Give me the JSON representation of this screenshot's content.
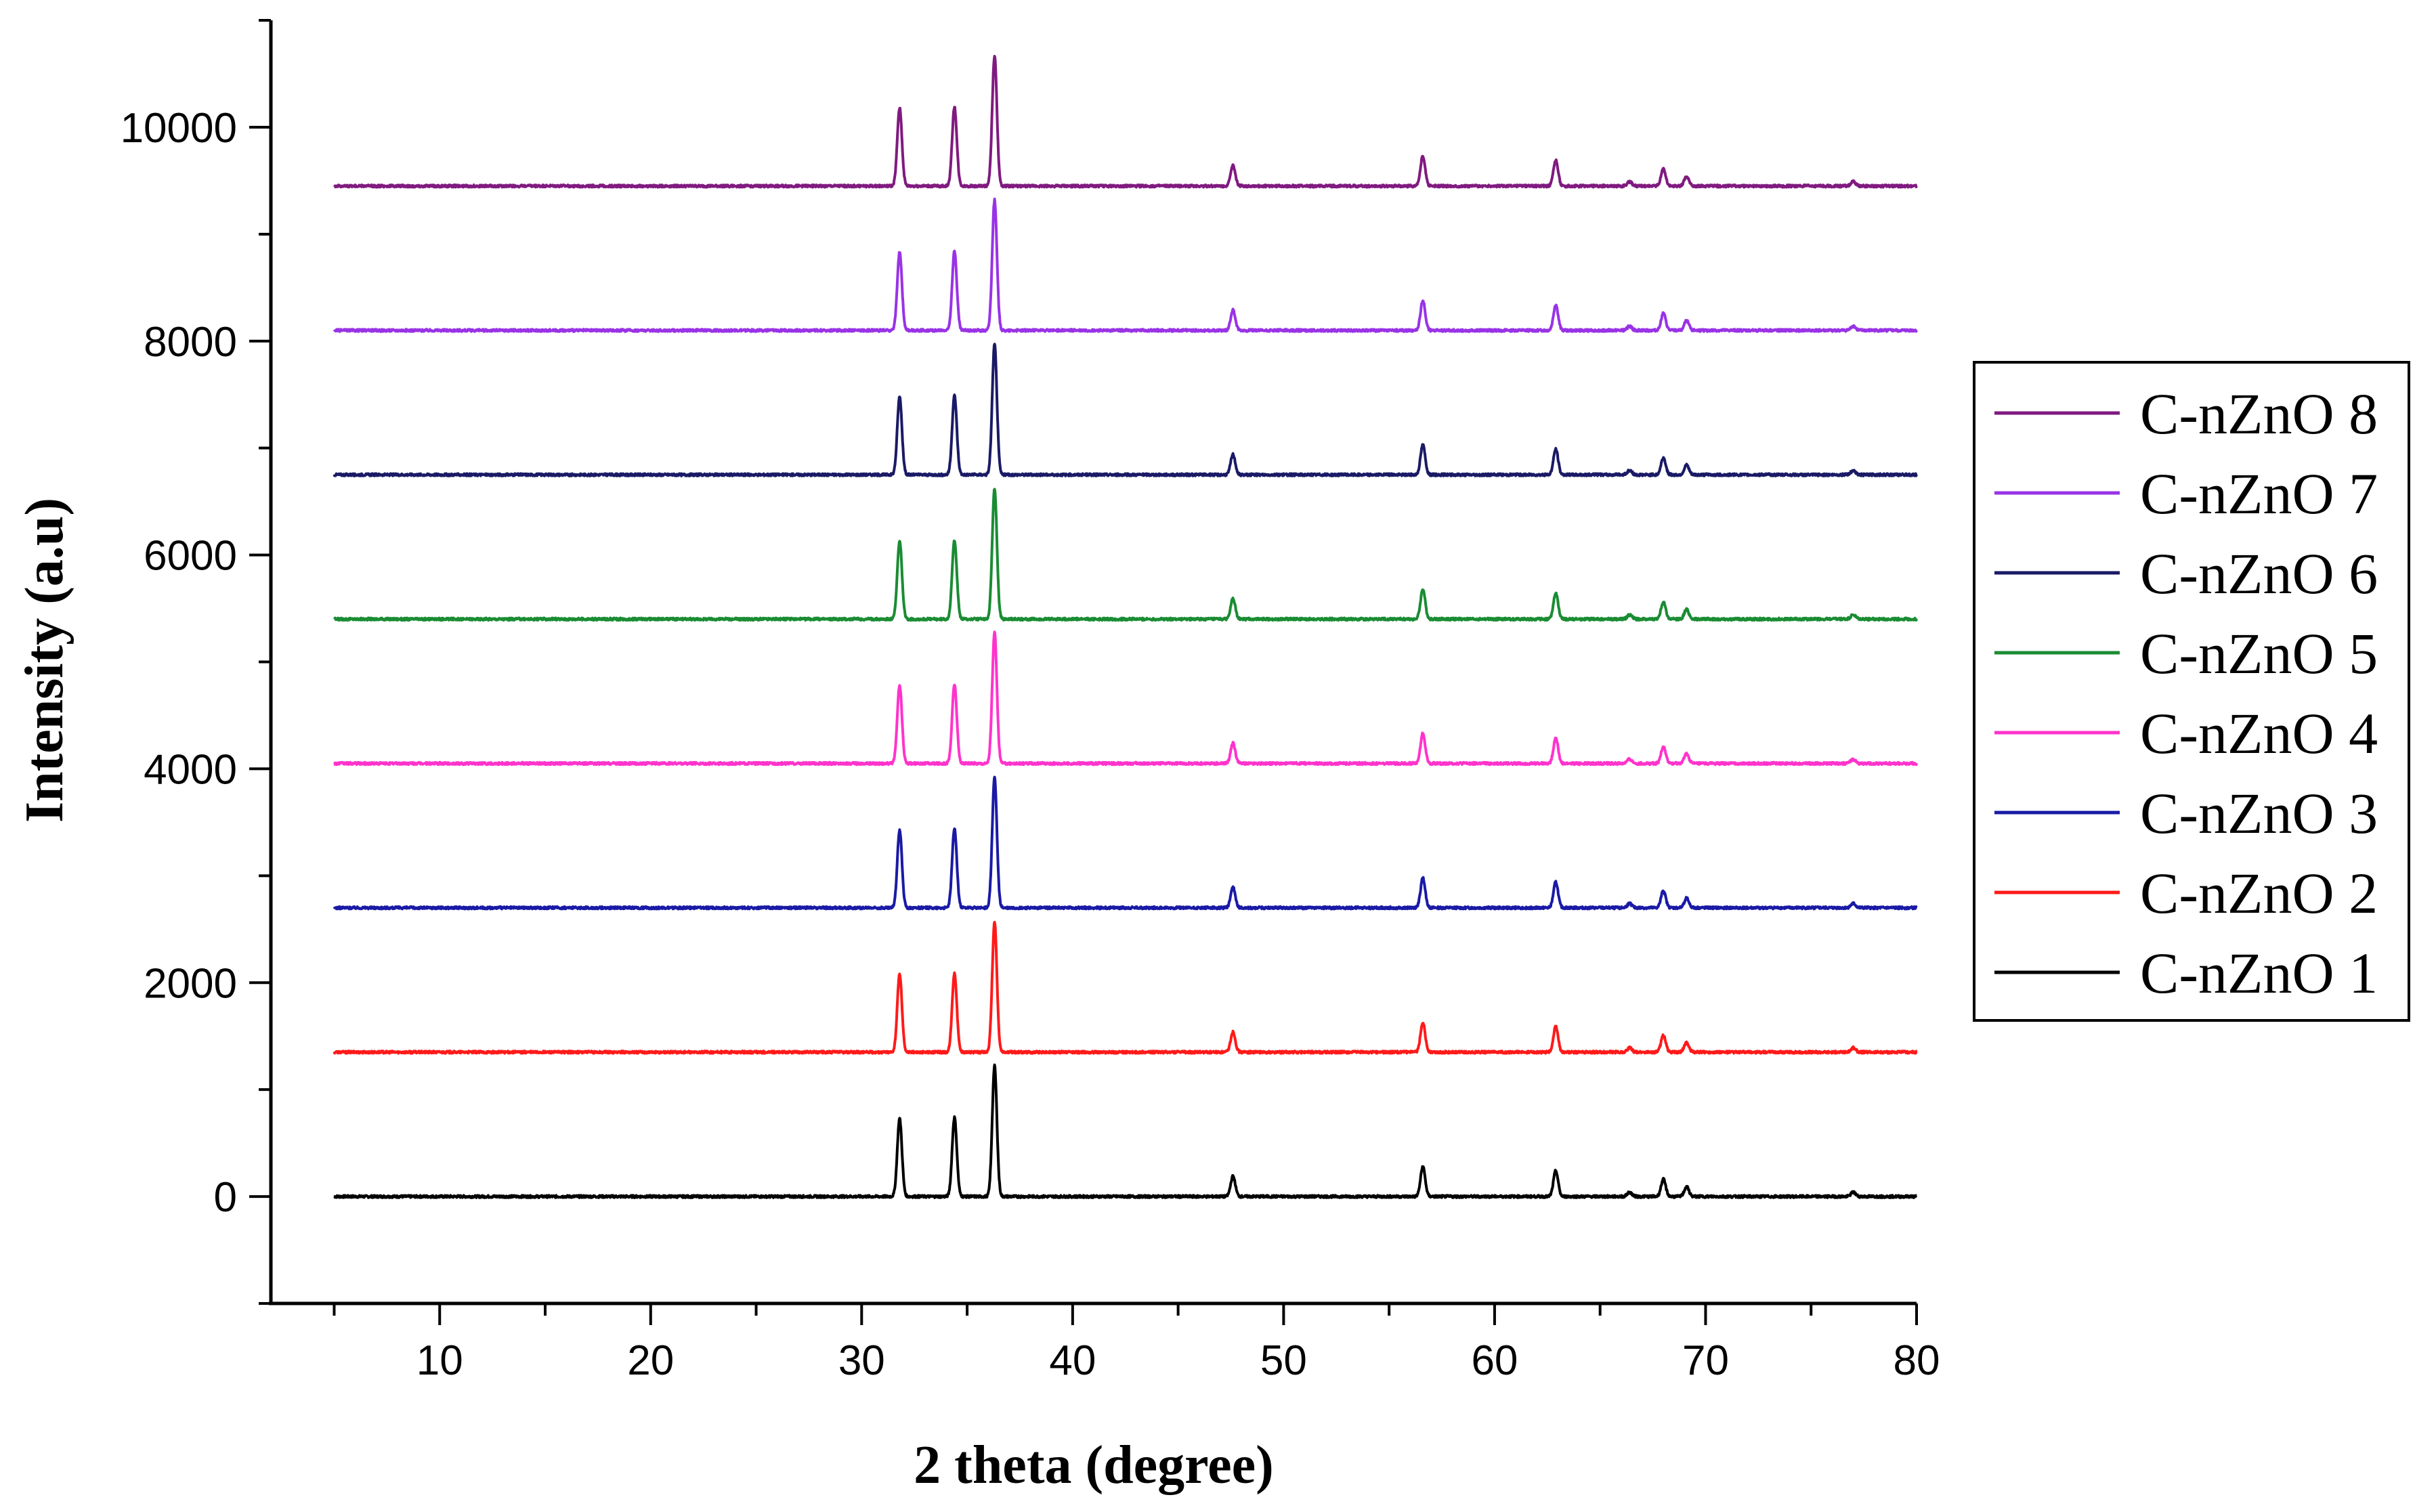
{
  "chart_data": {
    "type": "line",
    "title": "",
    "xlabel": "2 theta (degree)",
    "ylabel": "Intensity (a.u)",
    "xlim": [
      2,
      80
    ],
    "ylim": [
      -1000,
      11000
    ],
    "x_range": [
      5,
      80
    ],
    "x_ticks": [
      10,
      20,
      30,
      40,
      50,
      60,
      70,
      80
    ],
    "y_ticks": [
      0,
      2000,
      4000,
      6000,
      8000,
      10000
    ],
    "grid": false,
    "legend_position": "right",
    "peaks": [
      {
        "two_theta": 31.8,
        "intensity": 730
      },
      {
        "two_theta": 34.4,
        "intensity": 740
      },
      {
        "two_theta": 36.3,
        "intensity": 1220
      },
      {
        "two_theta": 47.6,
        "intensity": 190
      },
      {
        "two_theta": 56.6,
        "intensity": 280
      },
      {
        "two_theta": 62.9,
        "intensity": 240
      },
      {
        "two_theta": 66.4,
        "intensity": 40
      },
      {
        "two_theta": 68.0,
        "intensity": 160
      },
      {
        "two_theta": 69.1,
        "intensity": 90
      },
      {
        "two_theta": 77.0,
        "intensity": 40
      }
    ],
    "series": [
      {
        "name": "C-nZnO 1",
        "baseline": 0,
        "color": "#000000"
      },
      {
        "name": "C-nZnO 2",
        "baseline": 1350,
        "color": "#ff1a1a"
      },
      {
        "name": "C-nZnO 3",
        "baseline": 2700,
        "color": "#1a1aa6"
      },
      {
        "name": "C-nZnO 4",
        "baseline": 4050,
        "color": "#ff33cc"
      },
      {
        "name": "C-nZnO 5",
        "baseline": 5400,
        "color": "#1a8c33"
      },
      {
        "name": "C-nZnO 6",
        "baseline": 6750,
        "color": "#1a1a66"
      },
      {
        "name": "C-nZnO 7",
        "baseline": 8100,
        "color": "#9933e6"
      },
      {
        "name": "C-nZnO 8",
        "baseline": 9450,
        "color": "#801a80"
      }
    ]
  }
}
